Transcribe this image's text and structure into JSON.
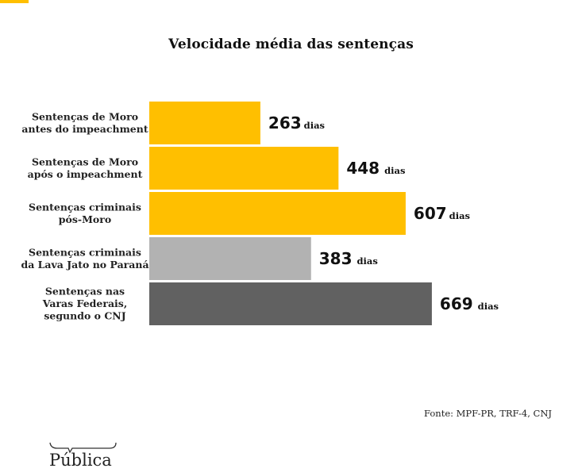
{
  "chart_data": {
    "type": "bar",
    "orientation": "horizontal",
    "title": "Velocidade média das sentenças",
    "xlabel": "",
    "ylabel": "",
    "unit": "dias",
    "xlim": [
      0,
      700
    ],
    "grid": false,
    "legend": "none",
    "categories": [
      [
        "Sentenças de Moro",
        "antes do impeachment"
      ],
      [
        "Sentenças de Moro",
        "após o impeachment"
      ],
      [
        "Sentenças criminais",
        "pós-Moro"
      ],
      [
        "Sentenças criminais",
        "da Lava Jato no Paraná"
      ],
      [
        "Sentenças nas",
        "Varas Federais,",
        "segundo o CNJ"
      ]
    ],
    "values": [
      263,
      448,
      607,
      383,
      669
    ],
    "colors": [
      "#FFBF00",
      "#FFBF00",
      "#FFBF00",
      "#B2B2B2",
      "#616161"
    ]
  },
  "source": "Fonte: MPF-PR, TRF-4, CNJ",
  "logo": {
    "text": "Pública"
  },
  "accent_color": "#FFBF00"
}
